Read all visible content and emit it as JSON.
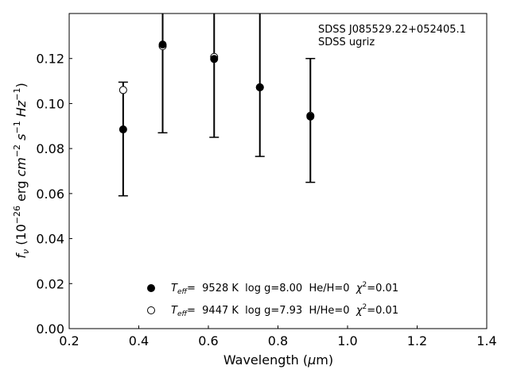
{
  "chart_data": {
    "type": "scatter",
    "title": "",
    "xlabel": "Wavelength (μm)",
    "ylabel": "f_ν (10^-26 erg cm^-2 s^-1 Hz^-1)",
    "xlim": [
      0.2,
      1.4
    ],
    "ylim": [
      0.0,
      0.14
    ],
    "x_ticks": [
      0.2,
      0.4,
      0.6,
      0.8,
      1.0,
      1.2,
      1.4
    ],
    "y_ticks": [
      0.0,
      0.02,
      0.04,
      0.06,
      0.08,
      0.1,
      0.12
    ],
    "x_tick_labels": [
      "0.2",
      "0.4",
      "0.6",
      "0.8",
      "1.0",
      "1.2",
      "1.4"
    ],
    "y_tick_labels": [
      "0.00",
      "0.02",
      "0.04",
      "0.06",
      "0.08",
      "0.10",
      "0.12"
    ],
    "grid": false,
    "legend_position": "bottom-center",
    "annotations": [
      "SDSS J085529.22+052405.1",
      "SDSS ugriz"
    ],
    "observed": {
      "x": [
        0.3551,
        0.4686,
        0.6166,
        0.748,
        0.8932
      ],
      "y": [
        0.0885,
        0.1265,
        0.12,
        0.107,
        0.0945
      ],
      "y_low": [
        0.059,
        0.087,
        0.085,
        0.0765,
        0.065
      ],
      "y_high": [
        0.1095,
        0.14,
        0.14,
        0.14,
        0.12
      ]
    },
    "series": [
      {
        "name": "Teff= 9528 K log g=8.00 He/H=0 χ2=0.01",
        "marker": "filled",
        "x": [
          0.3551,
          0.4686,
          0.6166,
          0.748,
          0.8932
        ],
        "y": [
          0.0885,
          0.1262,
          0.1198,
          0.1072,
          0.0942
        ]
      },
      {
        "name": "Teff= 9447 K log g=7.93 H/He=0 χ2=0.01",
        "marker": "open",
        "x": [
          0.3551,
          0.4686,
          0.6166,
          0.748,
          0.8932
        ],
        "y": [
          0.106,
          0.1255,
          0.1207,
          0.1072,
          0.0946
        ]
      }
    ],
    "legend": [
      {
        "teff_label": "T",
        "teff_sub": "eff",
        "eq": "=  9528 K  log g=8.00  He/H=0  ",
        "chi": "χ",
        "chi_sup": "2",
        "chi_val": "=0.01"
      },
      {
        "teff_label": "T",
        "teff_sub": "eff",
        "eq": "=  9447 K  log g=7.93  H/He=0  ",
        "chi": "χ",
        "chi_sup": "2",
        "chi_val": "=0.01"
      }
    ],
    "colors": {
      "marker": "#000000",
      "open_fill": "#ffffff",
      "axes": "#000000"
    }
  }
}
